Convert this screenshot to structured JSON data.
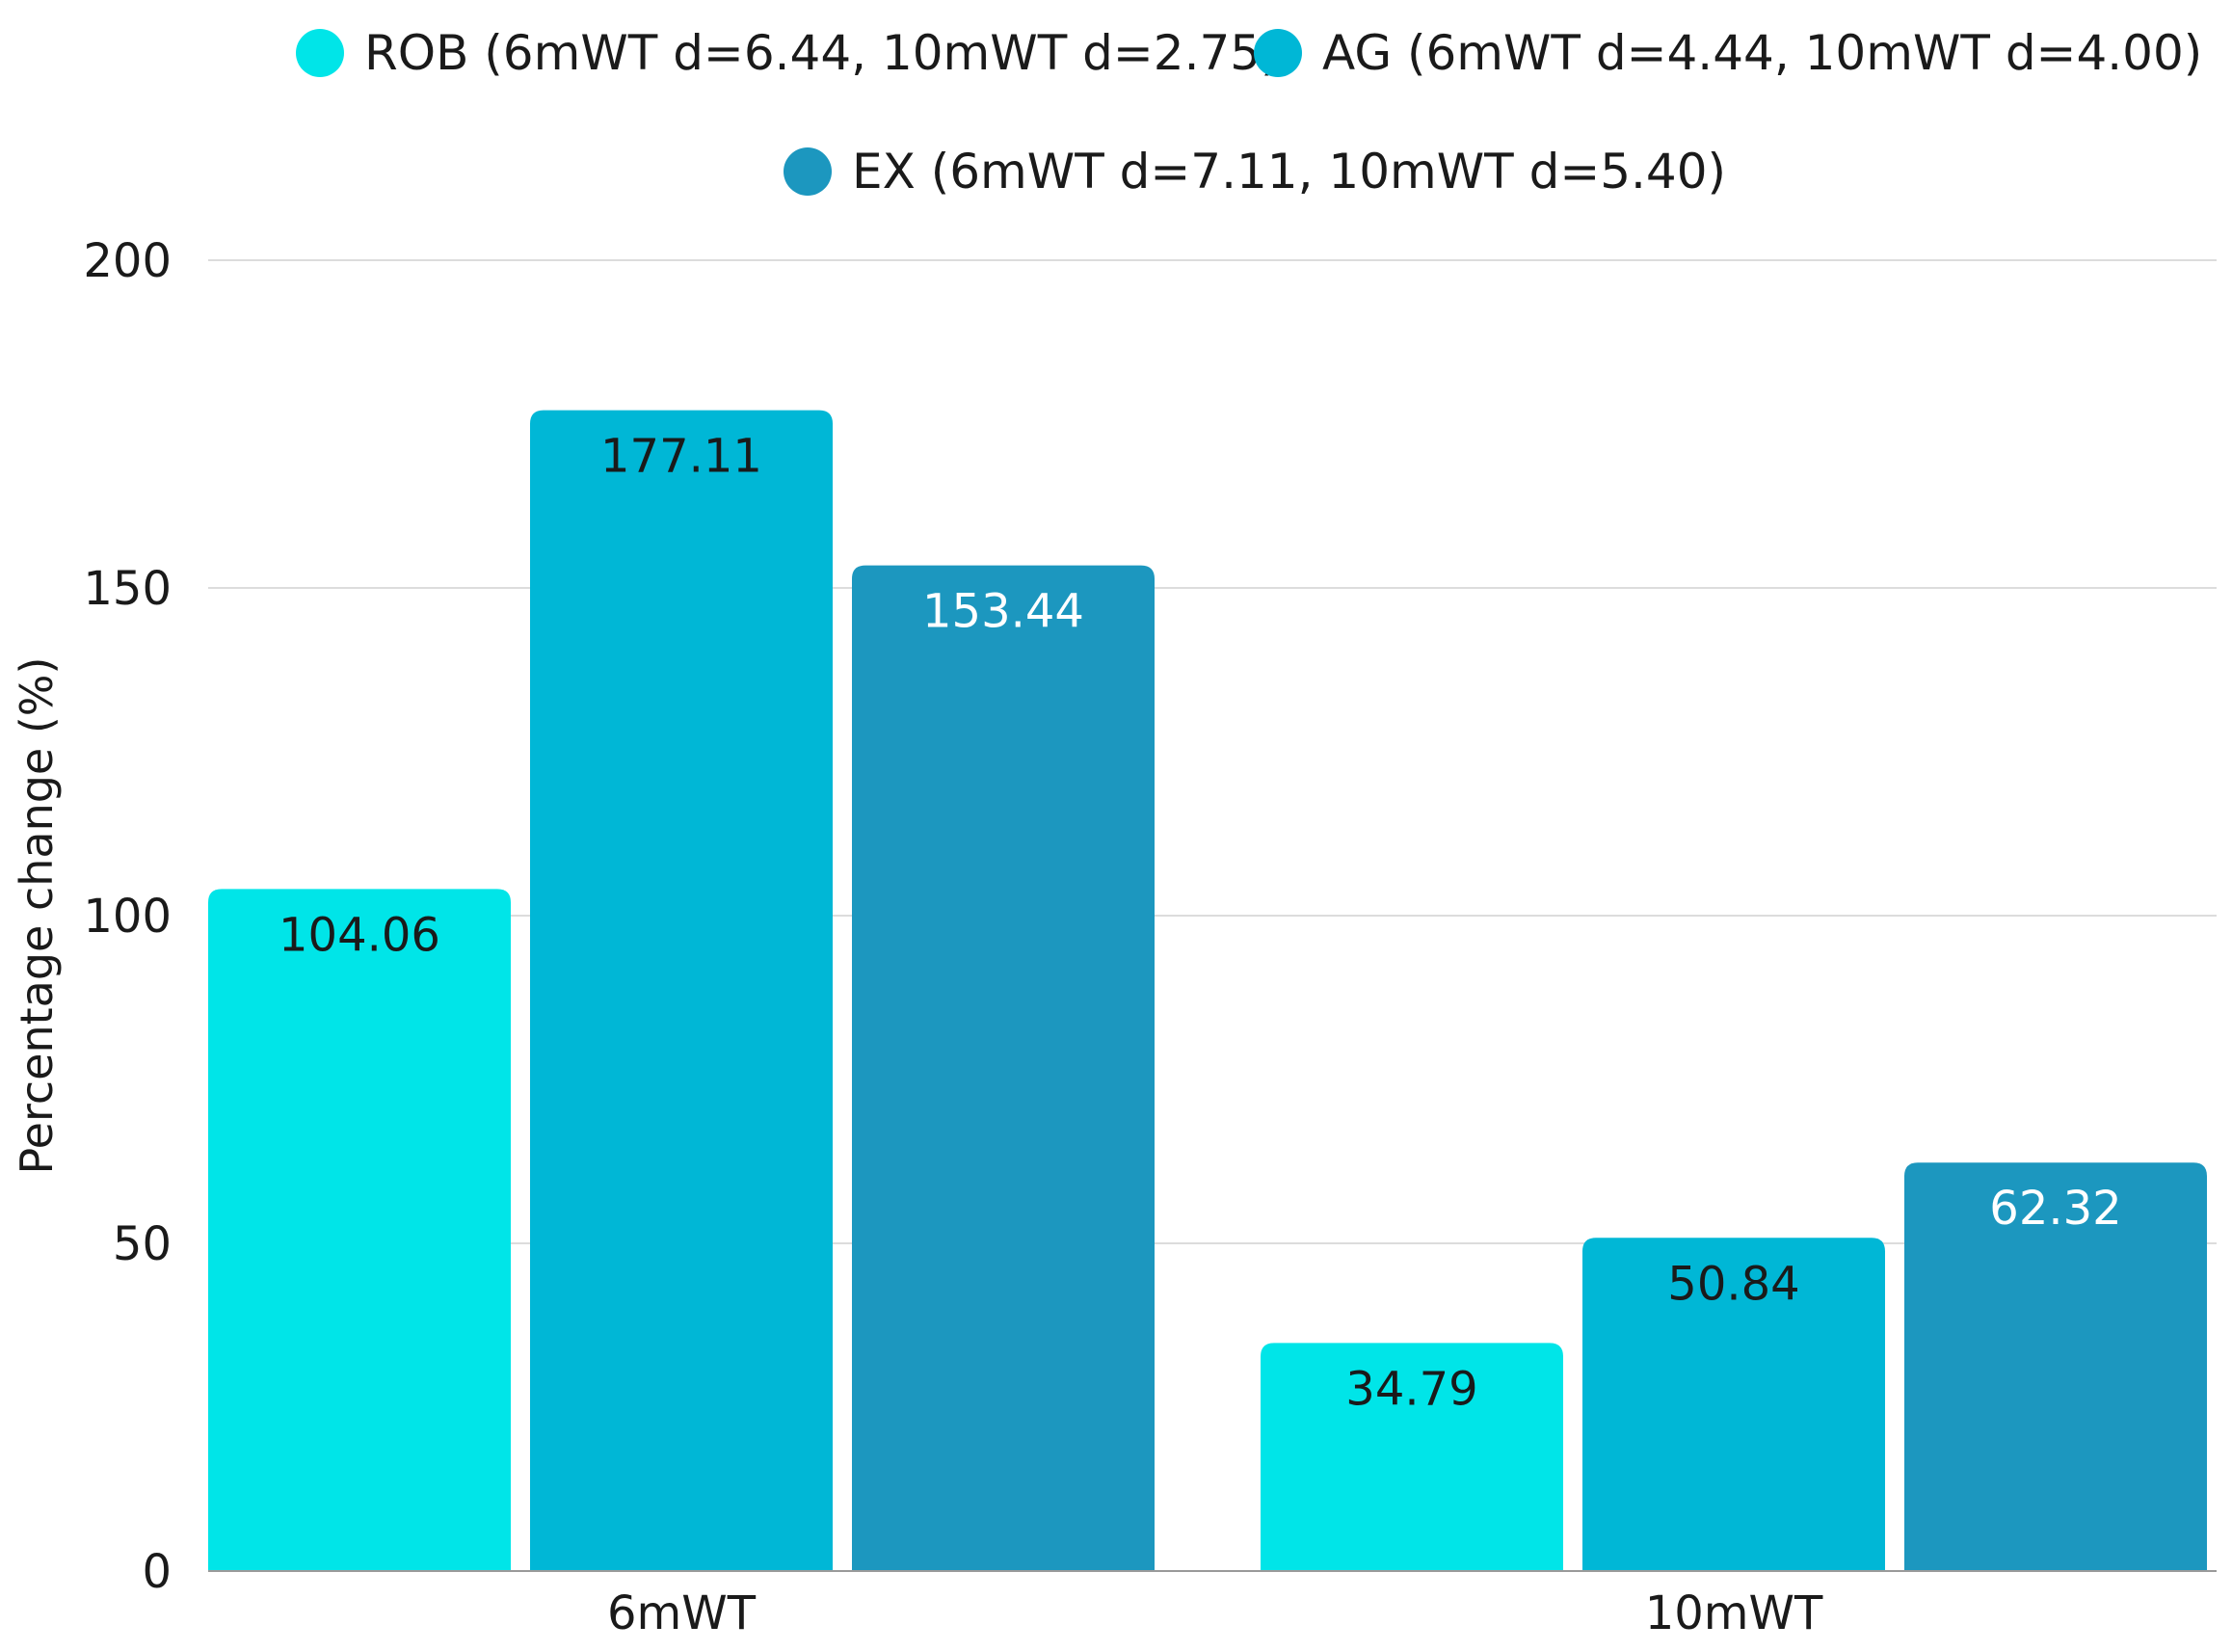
{
  "chart_data": {
    "type": "bar",
    "title": "",
    "xlabel": "",
    "ylabel": "Percentage change (%)",
    "ylim": [
      0,
      200
    ],
    "yticks": [
      0,
      50,
      100,
      150,
      200
    ],
    "grid": true,
    "legend_position": "top",
    "categories": [
      "6mWT",
      "10mWT"
    ],
    "series": [
      {
        "name": "ROB (6mWT d=6.44, 10mWT d=2.75)",
        "color": "#00e5e8",
        "label_color": "#1a1a1a",
        "values": [
          104.06,
          34.79
        ]
      },
      {
        "name": "AG (6mWT d=4.44, 10mWT d=4.00)",
        "color": "#00b7d6",
        "label_color": "#1a1a1a",
        "values": [
          177.11,
          50.84
        ]
      },
      {
        "name": "EX (6mWT d=7.11, 10mWT d=5.40)",
        "color": "#1c97bf",
        "label_color": "#ffffff",
        "values": [
          153.44,
          62.32
        ]
      }
    ],
    "value_labels": [
      [
        "104.06",
        "34.79"
      ],
      [
        "177.11",
        "50.84"
      ],
      [
        "153.44",
        "62.32"
      ]
    ]
  }
}
